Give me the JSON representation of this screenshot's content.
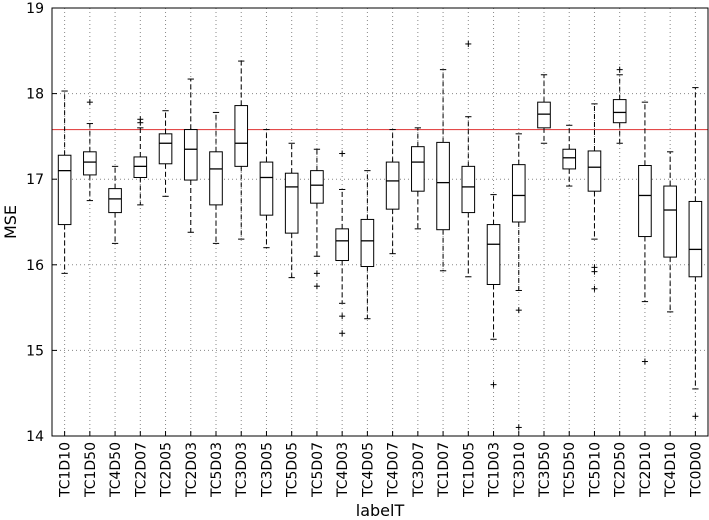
{
  "chart_data": {
    "type": "box",
    "xlabel": "labelT",
    "ylabel": "MSE",
    "ylim": [
      14,
      19
    ],
    "yticks": [
      14,
      15,
      16,
      17,
      18,
      19
    ],
    "grid": true,
    "reference_line": {
      "value": 17.58,
      "color": "#e34a4a"
    },
    "categories": [
      "TC1D10",
      "TC1D50",
      "TC4D50",
      "TC2D07",
      "TC2D05",
      "TC2D03",
      "TC5D03",
      "TC3D03",
      "TC3D05",
      "TC5D05",
      "TC5D07",
      "TC4D03",
      "TC4D05",
      "TC4D07",
      "TC3D07",
      "TC1D07",
      "TC1D05",
      "TC1D03",
      "TC3D10",
      "TC3D50",
      "TC5D50",
      "TC5D10",
      "TC2D50",
      "TC2D10",
      "TC4D10",
      "TC0D00"
    ],
    "boxes": [
      {
        "whislo": 15.9,
        "q1": 16.47,
        "med": 17.1,
        "q3": 17.28,
        "whishi": 18.03,
        "fliers": []
      },
      {
        "whislo": 16.75,
        "q1": 17.05,
        "med": 17.2,
        "q3": 17.32,
        "whishi": 17.65,
        "fliers": [
          17.9
        ]
      },
      {
        "whislo": 16.25,
        "q1": 16.61,
        "med": 16.77,
        "q3": 16.89,
        "whishi": 17.15,
        "fliers": []
      },
      {
        "whislo": 16.7,
        "q1": 17.02,
        "med": 17.15,
        "q3": 17.26,
        "whishi": 17.6,
        "fliers": [
          17.66,
          17.7
        ]
      },
      {
        "whislo": 16.8,
        "q1": 17.18,
        "med": 17.42,
        "q3": 17.53,
        "whishi": 17.8,
        "fliers": []
      },
      {
        "whislo": 16.38,
        "q1": 16.99,
        "med": 17.35,
        "q3": 17.58,
        "whishi": 18.17,
        "fliers": []
      },
      {
        "whislo": 16.25,
        "q1": 16.7,
        "med": 17.12,
        "q3": 17.32,
        "whishi": 17.78,
        "fliers": []
      },
      {
        "whislo": 16.3,
        "q1": 17.15,
        "med": 17.42,
        "q3": 17.86,
        "whishi": 18.38,
        "fliers": []
      },
      {
        "whislo": 16.2,
        "q1": 16.58,
        "med": 17.02,
        "q3": 17.2,
        "whishi": 17.58,
        "fliers": []
      },
      {
        "whislo": 15.85,
        "q1": 16.37,
        "med": 16.91,
        "q3": 17.07,
        "whishi": 17.42,
        "fliers": []
      },
      {
        "whislo": 16.1,
        "q1": 16.72,
        "med": 16.93,
        "q3": 17.1,
        "whishi": 17.35,
        "fliers": [
          15.75,
          15.9
        ]
      },
      {
        "whislo": 15.55,
        "q1": 16.05,
        "med": 16.28,
        "q3": 16.42,
        "whishi": 16.88,
        "fliers": [
          17.3,
          15.2,
          15.4
        ]
      },
      {
        "whislo": 15.37,
        "q1": 15.98,
        "med": 16.28,
        "q3": 16.53,
        "whishi": 17.1,
        "fliers": []
      },
      {
        "whislo": 16.13,
        "q1": 16.65,
        "med": 16.98,
        "q3": 17.2,
        "whishi": 17.58,
        "fliers": []
      },
      {
        "whislo": 16.42,
        "q1": 16.86,
        "med": 17.2,
        "q3": 17.38,
        "whishi": 17.6,
        "fliers": []
      },
      {
        "whislo": 15.93,
        "q1": 16.41,
        "med": 16.96,
        "q3": 17.43,
        "whishi": 18.28,
        "fliers": []
      },
      {
        "whislo": 15.86,
        "q1": 16.61,
        "med": 16.91,
        "q3": 17.15,
        "whishi": 17.73,
        "fliers": [
          18.58
        ]
      },
      {
        "whislo": 15.13,
        "q1": 15.77,
        "med": 16.24,
        "q3": 16.47,
        "whishi": 16.82,
        "fliers": [
          14.6
        ]
      },
      {
        "whislo": 15.7,
        "q1": 16.5,
        "med": 16.81,
        "q3": 17.17,
        "whishi": 17.53,
        "fliers": [
          15.47,
          14.1
        ]
      },
      {
        "whislo": 17.42,
        "q1": 17.6,
        "med": 17.76,
        "q3": 17.9,
        "whishi": 18.22,
        "fliers": []
      },
      {
        "whislo": 16.92,
        "q1": 17.12,
        "med": 17.25,
        "q3": 17.35,
        "whishi": 17.63,
        "fliers": []
      },
      {
        "whislo": 16.3,
        "q1": 16.86,
        "med": 17.14,
        "q3": 17.33,
        "whishi": 17.88,
        "fliers": [
          15.72,
          15.92,
          15.97
        ]
      },
      {
        "whislo": 17.42,
        "q1": 17.66,
        "med": 17.78,
        "q3": 17.93,
        "whishi": 18.22,
        "fliers": [
          18.28
        ]
      },
      {
        "whislo": 15.57,
        "q1": 16.33,
        "med": 16.81,
        "q3": 17.16,
        "whishi": 17.9,
        "fliers": [
          14.87
        ]
      },
      {
        "whislo": 15.45,
        "q1": 16.09,
        "med": 16.64,
        "q3": 16.92,
        "whishi": 17.32,
        "fliers": []
      },
      {
        "whislo": 14.55,
        "q1": 15.86,
        "med": 16.18,
        "q3": 16.74,
        "whishi": 18.07,
        "fliers": [
          14.23
        ]
      }
    ]
  }
}
